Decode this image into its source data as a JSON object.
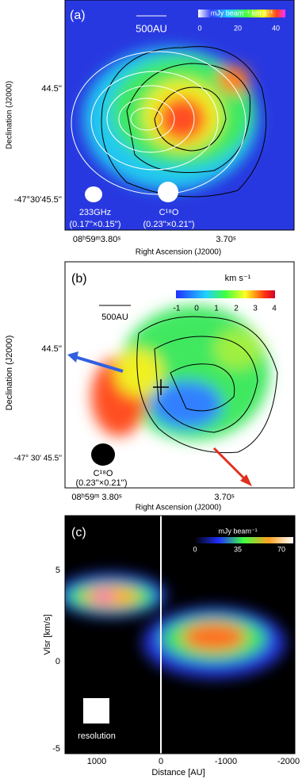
{
  "panels": [
    {
      "label": "(a)",
      "colorbar_title": "mJy beam⁻¹ km s⁻¹",
      "colorbar_ticks": [
        "0",
        "20",
        "40"
      ],
      "scale_bar": "500AU",
      "y_ticks": [
        "44.5''",
        "-47°30'45.5''"
      ],
      "y_label": "Declination (J2000)",
      "x_ticks": [
        "08ʰ59ᵐ3.80ˢ",
        "3.70ˢ"
      ],
      "x_label": "Right Ascension (J2000)",
      "beams": [
        {
          "name": "233GHz",
          "size": "(0.17''×0.15'')"
        },
        {
          "name": "C¹⁸O",
          "size": "(0.23''×0.21'')"
        }
      ]
    },
    {
      "label": "(b)",
      "colorbar_title": "km s⁻¹",
      "colorbar_ticks": [
        "-1",
        "0",
        "1",
        "2",
        "3",
        "4"
      ],
      "scale_bar": "500AU",
      "y_ticks": [
        "44.5''",
        "-47° 30' 45.5''"
      ],
      "y_label": "Declination (J2000)",
      "x_ticks": [
        "08ʰ59ᵐ 3.80ˢ",
        "3.70ˢ"
      ],
      "x_label": "Right Ascension (J2000)",
      "beams": [
        {
          "name": "C¹⁸O",
          "size": "(0.23''×0.21'')"
        }
      ]
    },
    {
      "label": "(c)",
      "colorbar_title": "mJy beam⁻¹",
      "colorbar_ticks": [
        "0",
        "35",
        "70"
      ],
      "resolution": "resolution",
      "y_ticks": [
        "5",
        "0",
        "-5"
      ],
      "y_label": "Vlsr [km/s]",
      "x_ticks": [
        "1000",
        "0",
        "-1000",
        "-2000"
      ],
      "x_label": "Distance [AU]"
    }
  ]
}
